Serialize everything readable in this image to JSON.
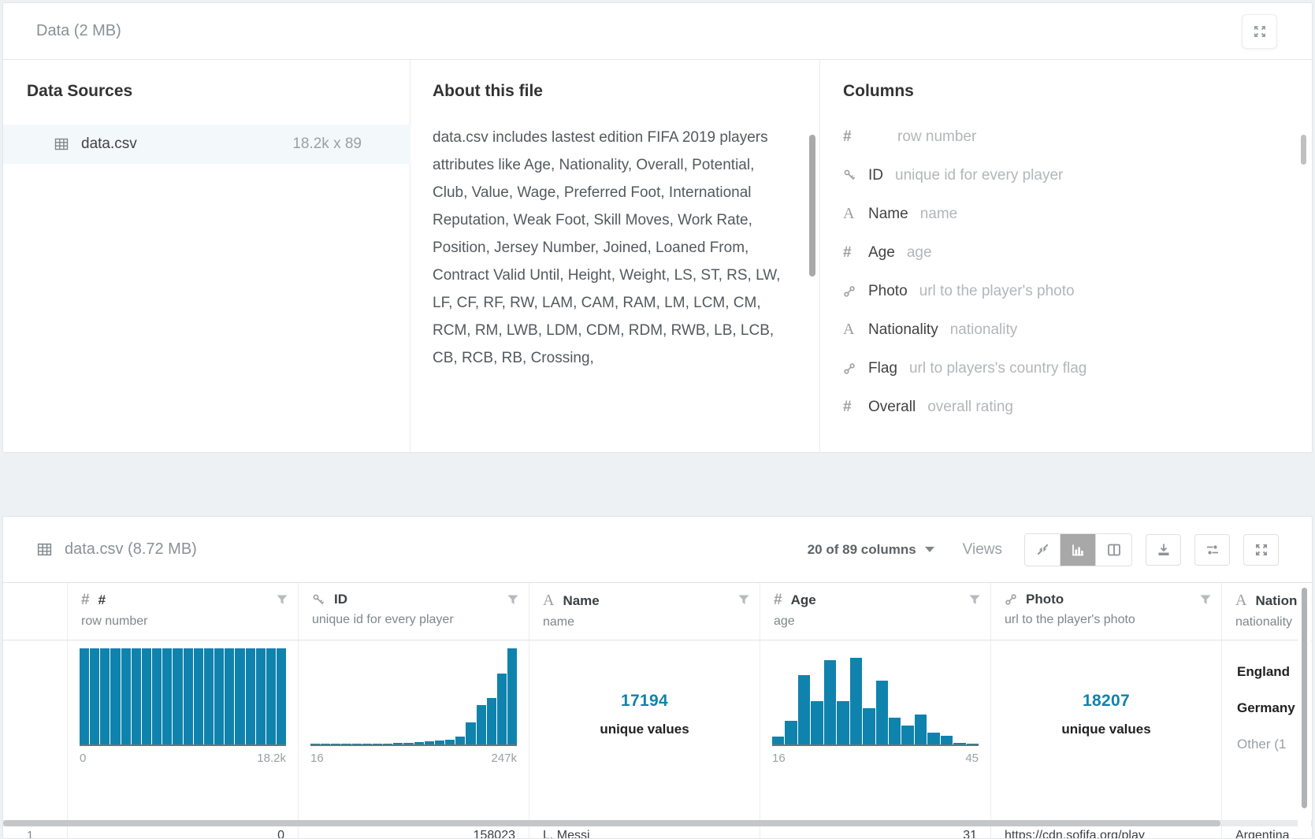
{
  "colors": {
    "accent_blue": "#0f83ad",
    "bar_blue": "#0f83ad"
  },
  "card1": {
    "title": "Data (2 MB)",
    "data_sources": {
      "heading": "Data Sources",
      "file_name": "data.csv",
      "file_dims": "18.2k x 89"
    },
    "about": {
      "heading": "About this file",
      "text": "data.csv includes lastest edition FIFA 2019 players attributes like Age, Nationality, Overall, Potential, Club, Value, Wage, Preferred Foot, International Reputation, Weak Foot, Skill Moves, Work Rate, Position, Jersey Number, Joined, Loaned From, Contract Valid Until, Height, Weight, LS, ST, RS, LW, LF, CF, RF, RW, LAM, CAM, RAM, LM, LCM, CM, RCM, RM, LWB, LDM, CDM, RDM, RWB, LB, LCB, CB, RCB, RB, Crossing,"
    },
    "columns": {
      "heading": "Columns",
      "items": [
        {
          "icon": "hash",
          "name": "",
          "desc": "row number"
        },
        {
          "icon": "key",
          "name": "ID",
          "desc": "unique id for every player"
        },
        {
          "icon": "letter",
          "name": "Name",
          "desc": "name"
        },
        {
          "icon": "hash",
          "name": "Age",
          "desc": "age"
        },
        {
          "icon": "link",
          "name": "Photo",
          "desc": "url to the player's photo"
        },
        {
          "icon": "letter",
          "name": "Nationality",
          "desc": "nationality"
        },
        {
          "icon": "link",
          "name": "Flag",
          "desc": "url to players's country flag"
        },
        {
          "icon": "hash",
          "name": "Overall",
          "desc": "overall rating"
        }
      ]
    }
  },
  "card2": {
    "title": "data.csv (8.72 MB)",
    "columns_selector": "20 of 89 columns",
    "views_label": "Views",
    "table": {
      "columns": [
        {
          "icon": "hash",
          "name": "#",
          "desc": "row number",
          "align": "right",
          "summary": {
            "type": "histogram",
            "xmin": "0",
            "xmax": "18.2k",
            "bins": [
              100,
              100,
              100,
              100,
              100,
              100,
              100,
              100,
              100,
              100,
              100,
              100,
              100,
              100,
              100,
              100,
              100,
              100,
              100,
              100
            ]
          }
        },
        {
          "icon": "key",
          "name": "ID",
          "desc": "unique id for every player",
          "align": "right",
          "summary": {
            "type": "histogram",
            "xmin": "16",
            "xmax": "247k",
            "bins": [
              0.5,
              0.5,
              0.5,
              0.5,
              0.5,
              1,
              1,
              1,
              1.5,
              2,
              2.5,
              3,
              4,
              5,
              8,
              23,
              41,
              48,
              74,
              100
            ]
          }
        },
        {
          "icon": "letter",
          "name": "Name",
          "desc": "name",
          "align": "left",
          "summary": {
            "type": "unique",
            "count": "17194",
            "label": "unique values"
          }
        },
        {
          "icon": "hash",
          "name": "Age",
          "desc": "age",
          "align": "right",
          "summary": {
            "type": "histogram",
            "xmin": "16",
            "xmax": "45",
            "bins": [
              8,
              25,
              72,
              45,
              88,
              45,
              90,
              38,
              66,
              28,
              20,
              31,
              12,
              9,
              2,
              1
            ]
          }
        },
        {
          "icon": "link",
          "name": "Photo",
          "desc": "url to the player's photo",
          "align": "left",
          "summary": {
            "type": "unique",
            "count": "18207",
            "label": "unique values"
          }
        },
        {
          "icon": "letter",
          "name": "Nationality",
          "desc": "nationality",
          "align": "left",
          "summary": {
            "type": "categories",
            "values": [
              {
                "label": "England",
                "emphasis": true
              },
              {
                "label": "Germany",
                "emphasis": true
              },
              {
                "label": "Other (1",
                "emphasis": false
              }
            ]
          }
        }
      ],
      "first_row": {
        "index": "1",
        "cells": [
          "0",
          "158023",
          "L. Messi",
          "31",
          "https://cdn.sofifa.org/play",
          "Argentina"
        ]
      }
    }
  }
}
